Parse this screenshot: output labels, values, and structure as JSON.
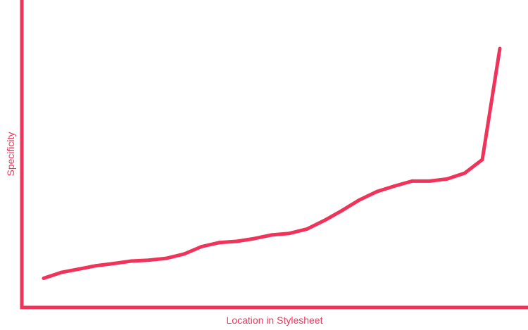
{
  "chart_data": {
    "type": "line",
    "title": "",
    "xlabel": "Location in Stylesheet",
    "ylabel": "Specificity",
    "xlim": [
      0,
      27
    ],
    "ylim": [
      0,
      100
    ],
    "grid": false,
    "legend": "none",
    "axis_ticks": false,
    "series": [
      {
        "color": "#f0335a",
        "x": [
          0,
          1,
          2,
          3,
          4,
          5,
          6,
          7,
          8,
          9,
          10,
          11,
          12,
          13,
          14,
          15,
          16,
          17,
          18,
          19,
          20,
          21,
          22,
          23,
          24,
          25,
          26
        ],
        "y": [
          9.5,
          11.4,
          12.5,
          13.6,
          14.3,
          15.1,
          15.4,
          16,
          17.4,
          19.8,
          21.1,
          21.5,
          22.4,
          23.6,
          24.1,
          25.5,
          28.3,
          31.5,
          35,
          37.7,
          39.5,
          41.1,
          41.1,
          41.8,
          43.7,
          48.1,
          84.2
        ]
      }
    ]
  },
  "colors": {
    "accent": "#f0335a",
    "background": "#ffffff"
  }
}
